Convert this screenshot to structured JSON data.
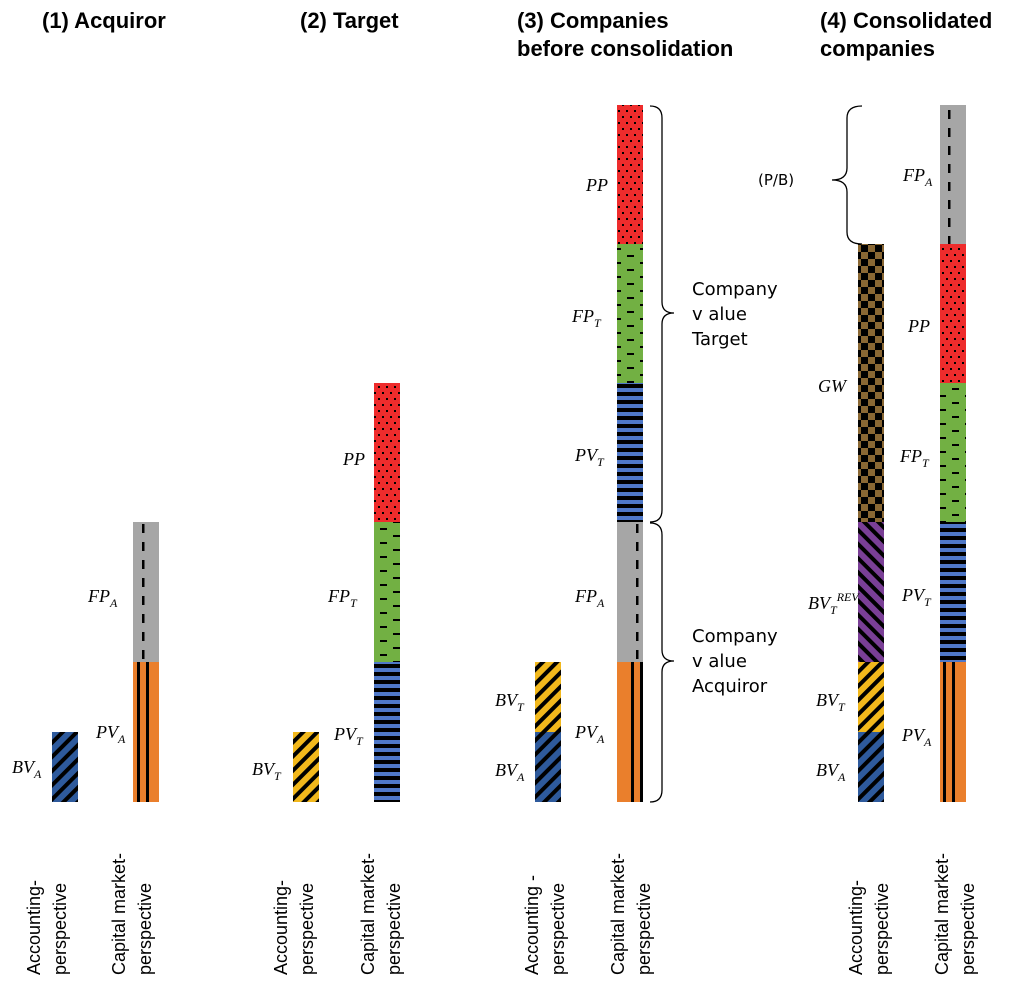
{
  "titles": {
    "acquiror": "(1) Acquiror",
    "target": "(2) Target",
    "before_line1": "(3) Companies",
    "before_line2": "before consolidation",
    "consolidated_line1": "(4) Consolidated",
    "consolidated_line2": "companies"
  },
  "axis_labels": {
    "accounting_line1": "Accounting-",
    "accounting_line2": "perspective",
    "capital_line1": "Capital market-",
    "capital_line2": "perspective",
    "accounting_spaced_line1": "Accounting -",
    "accounting_spaced_line2": "perspective"
  },
  "segment_labels": {
    "bv": "BV",
    "pv": "PV",
    "fp": "FP",
    "pp": "PP",
    "gw": "GW",
    "sub_a": "A",
    "sub_t": "T",
    "sup_rev": "REV"
  },
  "brackets": {
    "company_value_target": [
      "Company",
      "v alue",
      "Target"
    ],
    "company_value_acquiror": [
      "Company",
      "v alue",
      "Acquiror"
    ],
    "price_to_book": "(P/B)"
  },
  "colors": {
    "bv_acquiror": "#2e5a9c",
    "bv_target": "#f2b81c",
    "bv_target_rev": "#7a3f96",
    "pv_acquiror": "#ea7f2c",
    "pv_target": "#4f78c8",
    "fp_acquiror": "#a6a6a6",
    "fp_target": "#72b043",
    "premium": "#ee2c2c",
    "goodwill": "#8a6834"
  }
}
